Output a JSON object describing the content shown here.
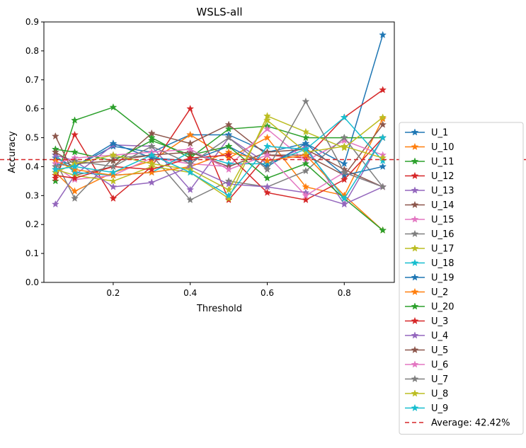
{
  "chart_data": {
    "type": "line",
    "title": "WSLS-all",
    "xlabel": "Threshold",
    "ylabel": "Accuracy",
    "xlim": [
      0.02,
      0.93
    ],
    "ylim": [
      0.0,
      0.9
    ],
    "xticks": [
      "0.2",
      "0.4",
      "0.6",
      "0.8"
    ],
    "yticks": [
      "0.0",
      "0.1",
      "0.2",
      "0.3",
      "0.4",
      "0.5",
      "0.6",
      "0.7",
      "0.8",
      "0.9"
    ],
    "x": [
      0.05,
      0.1,
      0.2,
      0.3,
      0.4,
      0.5,
      0.6,
      0.7,
      0.8,
      0.9
    ],
    "grid": false,
    "legend_position": "outside-right",
    "series": [
      {
        "name": "U_1",
        "color": "#1f77b4",
        "values": [
          0.43,
          0.4,
          0.47,
          0.45,
          0.51,
          0.51,
          0.45,
          0.48,
          0.41,
          0.855
        ]
      },
      {
        "name": "U_10",
        "color": "#ff7f0e",
        "values": [
          0.38,
          0.315,
          0.38,
          0.42,
          0.51,
          0.43,
          0.5,
          0.33,
          0.3,
          0.565
        ]
      },
      {
        "name": "U_11",
        "color": "#2ca02c",
        "values": [
          0.35,
          0.56,
          0.605,
          0.5,
          0.43,
          0.53,
          0.54,
          0.5,
          0.5,
          0.5
        ]
      },
      {
        "name": "U_12",
        "color": "#d62728",
        "values": [
          0.36,
          0.51,
          0.29,
          0.4,
          0.6,
          0.285,
          0.44,
          0.43,
          0.57,
          0.665
        ]
      },
      {
        "name": "U_13",
        "color": "#9467bd",
        "values": [
          0.27,
          0.37,
          0.475,
          0.47,
          0.32,
          0.5,
          0.41,
          0.47,
          0.27,
          0.5
        ]
      },
      {
        "name": "U_14",
        "color": "#8c564b",
        "values": [
          0.505,
          0.37,
          0.4,
          0.515,
          0.48,
          0.545,
          0.44,
          0.44,
          0.37,
          0.545
        ]
      },
      {
        "name": "U_15",
        "color": "#e377c2",
        "values": [
          0.4,
          0.355,
          0.37,
          0.43,
          0.41,
          0.4,
          0.53,
          0.42,
          0.49,
          0.44
        ]
      },
      {
        "name": "U_16",
        "color": "#7f7f7f",
        "values": [
          0.42,
          0.29,
          0.43,
          0.44,
          0.285,
          0.35,
          0.33,
          0.385,
          0.5,
          0.33
        ]
      },
      {
        "name": "U_17",
        "color": "#bcbd22",
        "values": [
          0.39,
          0.37,
          0.35,
          0.4,
          0.38,
          0.29,
          0.575,
          0.52,
          0.465,
          0.57
        ]
      },
      {
        "name": "U_18",
        "color": "#17becf",
        "values": [
          0.44,
          0.38,
          0.37,
          0.38,
          0.45,
          0.41,
          0.41,
          0.46,
          0.57,
          0.42
        ]
      },
      {
        "name": "U_19",
        "color": "#1f77b4",
        "values": [
          0.41,
          0.4,
          0.48,
          0.43,
          0.42,
          0.47,
          0.4,
          0.48,
          0.37,
          0.4
        ]
      },
      {
        "name": "U_2",
        "color": "#ff7f0e",
        "values": [
          0.42,
          0.39,
          0.37,
          0.38,
          0.4,
          0.45,
          0.42,
          0.44,
          0.3,
          0.18
        ]
      },
      {
        "name": "U_20",
        "color": "#2ca02c",
        "values": [
          0.46,
          0.45,
          0.42,
          0.49,
          0.44,
          0.47,
          0.36,
          0.41,
          0.29,
          0.18
        ]
      },
      {
        "name": "U_3",
        "color": "#d62728",
        "values": [
          0.37,
          0.36,
          0.4,
          0.39,
          0.43,
          0.44,
          0.31,
          0.285,
          0.355,
          0.5
        ]
      },
      {
        "name": "U_4",
        "color": "#9467bd",
        "values": [
          0.44,
          0.42,
          0.33,
          0.345,
          0.4,
          0.34,
          0.33,
          0.31,
          0.27,
          0.33
        ]
      },
      {
        "name": "U_5",
        "color": "#8c564b",
        "values": [
          0.45,
          0.41,
          0.42,
          0.44,
          0.45,
          0.4,
          0.45,
          0.46,
          0.39,
          0.33
        ]
      },
      {
        "name": "U_6",
        "color": "#e377c2",
        "values": [
          0.41,
          0.43,
          0.44,
          0.45,
          0.46,
          0.39,
          0.44,
          0.3,
          0.38,
          0.33
        ]
      },
      {
        "name": "U_7",
        "color": "#7f7f7f",
        "values": [
          0.4,
          0.42,
          0.4,
          0.47,
          0.41,
          0.5,
          0.39,
          0.625,
          0.38,
          0.33
        ]
      },
      {
        "name": "U_8",
        "color": "#bcbd22",
        "values": [
          0.38,
          0.41,
          0.44,
          0.41,
          0.39,
          0.32,
          0.56,
          0.45,
          0.47,
          0.43
        ]
      },
      {
        "name": "U_9",
        "color": "#17becf",
        "values": [
          0.39,
          0.4,
          0.38,
          0.44,
          0.38,
          0.3,
          0.47,
          0.46,
          0.29,
          0.5
        ]
      }
    ],
    "reference_line": {
      "label": "Average: 42.42%",
      "value": 0.4242,
      "color": "#d62728",
      "style": "dashed"
    }
  }
}
